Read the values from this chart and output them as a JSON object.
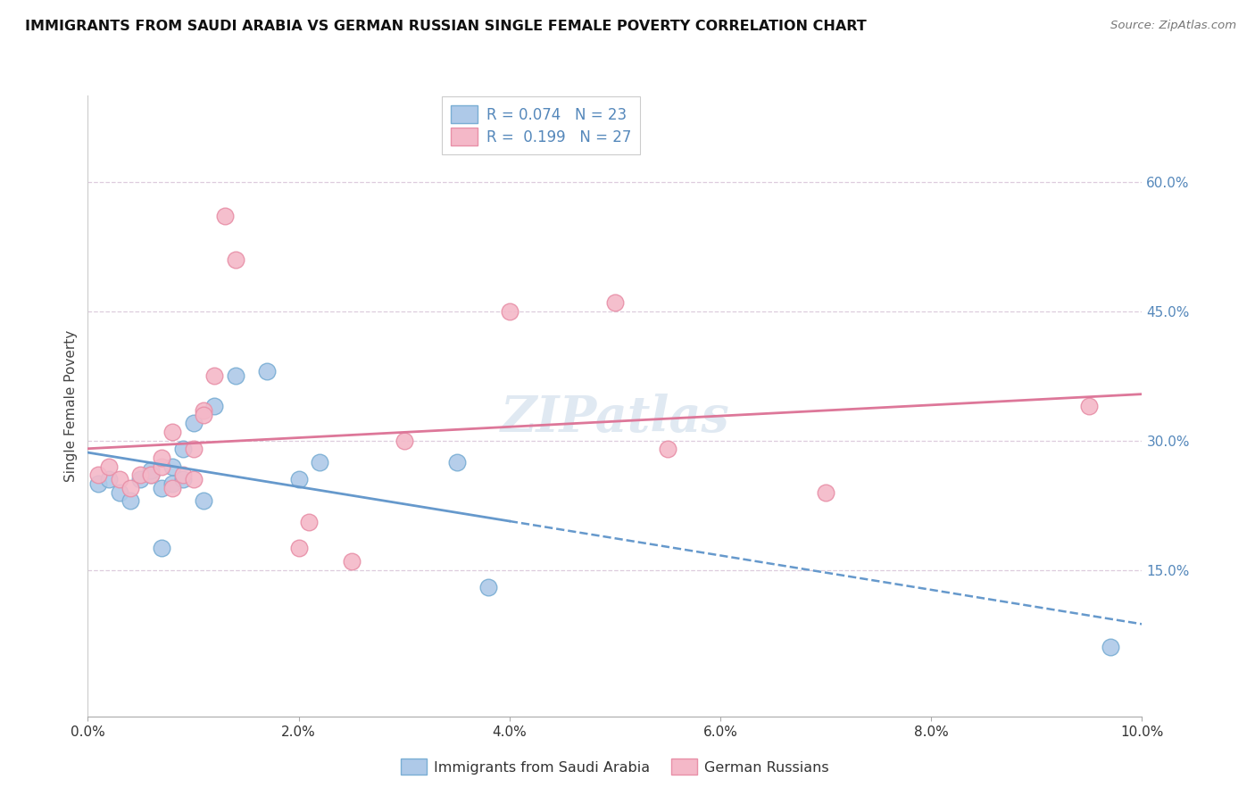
{
  "title": "IMMIGRANTS FROM SAUDI ARABIA VS GERMAN RUSSIAN SINGLE FEMALE POVERTY CORRELATION CHART",
  "source": "Source: ZipAtlas.com",
  "ylabel": "Single Female Poverty",
  "legend_label1": "Immigrants from Saudi Arabia",
  "legend_label2": "German Russians",
  "R1": 0.074,
  "N1": 23,
  "R2": 0.199,
  "N2": 27,
  "xlim": [
    0.0,
    0.1
  ],
  "ylim": [
    -0.02,
    0.7
  ],
  "xtick_vals": [
    0.0,
    0.02,
    0.04,
    0.06,
    0.08,
    0.1
  ],
  "ytick_right_vals": [
    0.15,
    0.3,
    0.45,
    0.6
  ],
  "color_blue_fill": "#aec9e8",
  "color_blue_edge": "#7aaed4",
  "color_pink_fill": "#f4b8c8",
  "color_pink_edge": "#e890a8",
  "color_blue_line": "#6699cc",
  "color_pink_line": "#dd7799",
  "color_blue_text": "#5588bb",
  "color_grid": "#ddccdd",
  "blue_dots_x": [
    0.001,
    0.002,
    0.003,
    0.004,
    0.005,
    0.006,
    0.006,
    0.007,
    0.007,
    0.008,
    0.008,
    0.009,
    0.009,
    0.01,
    0.011,
    0.012,
    0.014,
    0.017,
    0.02,
    0.022,
    0.035,
    0.038,
    0.097
  ],
  "blue_dots_y": [
    0.25,
    0.255,
    0.24,
    0.23,
    0.255,
    0.26,
    0.265,
    0.175,
    0.245,
    0.25,
    0.27,
    0.255,
    0.29,
    0.32,
    0.23,
    0.34,
    0.375,
    0.38,
    0.255,
    0.275,
    0.275,
    0.13,
    0.06
  ],
  "pink_dots_x": [
    0.001,
    0.002,
    0.003,
    0.004,
    0.005,
    0.006,
    0.007,
    0.007,
    0.008,
    0.008,
    0.009,
    0.01,
    0.01,
    0.011,
    0.011,
    0.012,
    0.013,
    0.014,
    0.02,
    0.021,
    0.025,
    0.03,
    0.04,
    0.05,
    0.055,
    0.07,
    0.095
  ],
  "pink_dots_y": [
    0.26,
    0.27,
    0.255,
    0.245,
    0.26,
    0.26,
    0.27,
    0.28,
    0.245,
    0.31,
    0.26,
    0.255,
    0.29,
    0.335,
    0.33,
    0.375,
    0.56,
    0.51,
    0.175,
    0.205,
    0.16,
    0.3,
    0.45,
    0.46,
    0.29,
    0.24,
    0.34
  ],
  "blue_line_x_solid_end": 0.04,
  "watermark": "ZIPatlas"
}
